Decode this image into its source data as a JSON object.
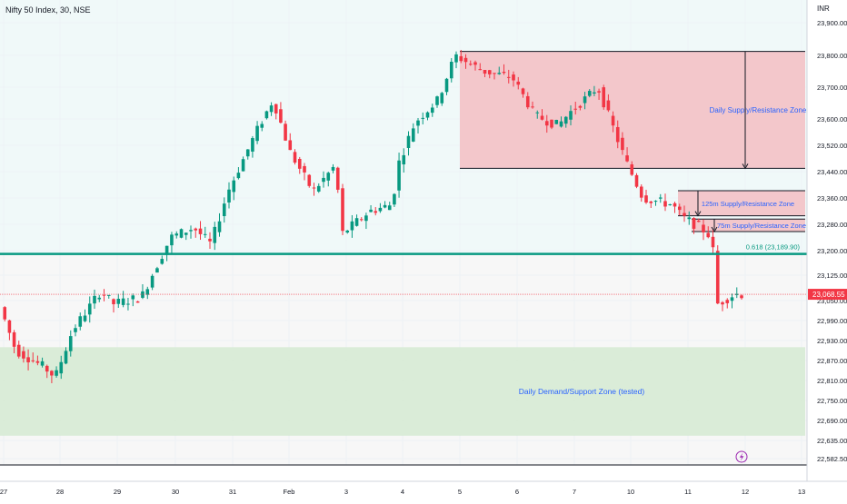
{
  "header": {
    "title": "Nifty 50 Index, 30, NSE"
  },
  "chart_data": {
    "type": "candlestick",
    "currency": "INR",
    "y_axis": {
      "labels": [
        "23,900.00",
        "23,800.00",
        "23,700.00",
        "23,600.00",
        "23,520.00",
        "23,440.00",
        "23,360.00",
        "23,280.00",
        "23,200.00",
        "23,125.00",
        "23,050.00",
        "22,990.00",
        "22,930.00",
        "22,870.00",
        "22,810.00",
        "22,750.00",
        "22,690.00",
        "22,635.00",
        "22,582.50"
      ],
      "values": [
        23900,
        23800,
        23700,
        23600,
        23520,
        23440,
        23360,
        23280,
        23200,
        23125,
        23050,
        22990,
        22930,
        22870,
        22810,
        22750,
        22690,
        22635,
        22582.5
      ]
    },
    "x_axis": {
      "labels": [
        "27",
        "28",
        "29",
        "30",
        "31",
        "Feb",
        "3",
        "4",
        "5",
        "6",
        "7",
        "10",
        "11",
        "12",
        "13"
      ]
    },
    "current_price": {
      "label": "23,068.55",
      "value": 23068.55,
      "color": "#f23645"
    },
    "fib_level": {
      "label": "0.618 (23,189.90)",
      "value": 23189.9,
      "color": "#089981"
    },
    "zones": [
      {
        "label": "Daily Supply/Resistance Zone",
        "top": 23812,
        "bottom": 23450,
        "from_day": "5",
        "fill": "#f2c4c8"
      },
      {
        "label": "125m Supply/Resistance Zone",
        "top": 23382,
        "bottom": 23306,
        "from_day": "10",
        "fill": "#f2c4c8"
      },
      {
        "label": "75m Supply/Resistance Zone",
        "top": 23296,
        "bottom": 23258,
        "from_day": "11",
        "fill": "#f2c4c8"
      },
      {
        "label": "Daily Demand/Support Zone (tested)",
        "top": 22910,
        "bottom": 22648,
        "from_day": "27",
        "fill": "#d6ead4"
      }
    ],
    "colors": {
      "up": "#089981",
      "down": "#f23645",
      "grid": "#eef2f6",
      "bg_top": "#f0f9f9"
    },
    "candles_sample": [
      {
        "day": "27",
        "open": 23020,
        "high": 23040,
        "low": 22870,
        "close": 22880
      },
      {
        "day": "28",
        "open": 22810,
        "high": 22930,
        "low": 22790,
        "close": 22910
      },
      {
        "day": "29",
        "open": 23090,
        "high": 23110,
        "low": 22930,
        "close": 23000
      },
      {
        "day": "30",
        "open": 23200,
        "high": 23310,
        "low": 23180,
        "close": 23280
      },
      {
        "day": "31",
        "open": 23590,
        "high": 23620,
        "low": 23390,
        "close": 23400
      },
      {
        "day": "Feb",
        "open": 23480,
        "high": 23560,
        "low": 23360,
        "close": 23380
      },
      {
        "day": "3",
        "open": 23240,
        "high": 23360,
        "low": 23220,
        "close": 23330
      },
      {
        "day": "4",
        "open": 23580,
        "high": 23640,
        "low": 23440,
        "close": 23600
      },
      {
        "day": "5",
        "open": 23790,
        "high": 23800,
        "low": 23720,
        "close": 23740
      },
      {
        "day": "6",
        "open": 23680,
        "high": 23700,
        "low": 23600,
        "close": 23620
      },
      {
        "day": "7",
        "open": 23660,
        "high": 23700,
        "low": 23540,
        "close": 23560
      },
      {
        "day": "10",
        "open": 23370,
        "high": 23390,
        "low": 23300,
        "close": 23330
      },
      {
        "day": "11",
        "open": 23270,
        "high": 23280,
        "low": 23200,
        "close": 23250
      },
      {
        "day": "12",
        "open": 23010,
        "high": 23080,
        "low": 22990,
        "close": 23068.55
      }
    ]
  }
}
